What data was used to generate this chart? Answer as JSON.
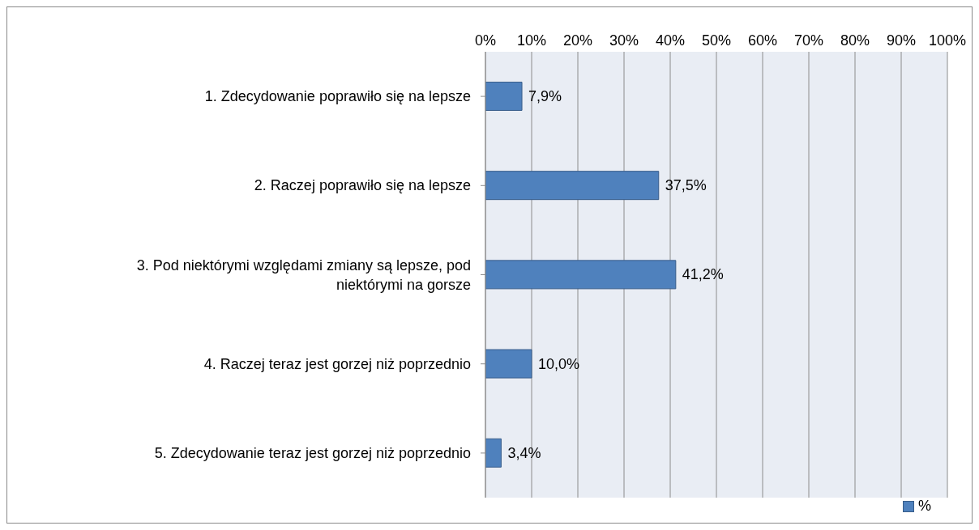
{
  "chart_data": {
    "type": "bar",
    "orientation": "horizontal",
    "categories": [
      "1. Zdecydowanie poprawiło się na lepsze",
      "2. Raczej poprawiło się na lepsze",
      "3. Pod niektórymi względami zmiany są lepsze, pod niektórymi na gorsze",
      "4. Raczej teraz jest gorzej niż poprzednio",
      "5. Zdecydowanie teraz jest gorzej niż poprzednio"
    ],
    "series": [
      {
        "name": "%",
        "color": "#4f81bd",
        "values": [
          7.9,
          37.5,
          41.2,
          10.0,
          3.4
        ],
        "value_labels": [
          "7,9%",
          "37,5%",
          "41,2%",
          "10,0%",
          "3,4%"
        ]
      }
    ],
    "xlim": [
      0,
      100
    ],
    "xticks": [
      {
        "value": 0,
        "label": "0%"
      },
      {
        "value": 10,
        "label": "10%"
      },
      {
        "value": 20,
        "label": "20%"
      },
      {
        "value": 30,
        "label": "30%"
      },
      {
        "value": 40,
        "label": "40%"
      },
      {
        "value": 50,
        "label": "50%"
      },
      {
        "value": 60,
        "label": "60%"
      },
      {
        "value": 70,
        "label": "70%"
      },
      {
        "value": 80,
        "label": "80%"
      },
      {
        "value": 90,
        "label": "90%"
      },
      {
        "value": 100,
        "label": "100%"
      }
    ],
    "grid": "x",
    "legend": "bottom right"
  }
}
